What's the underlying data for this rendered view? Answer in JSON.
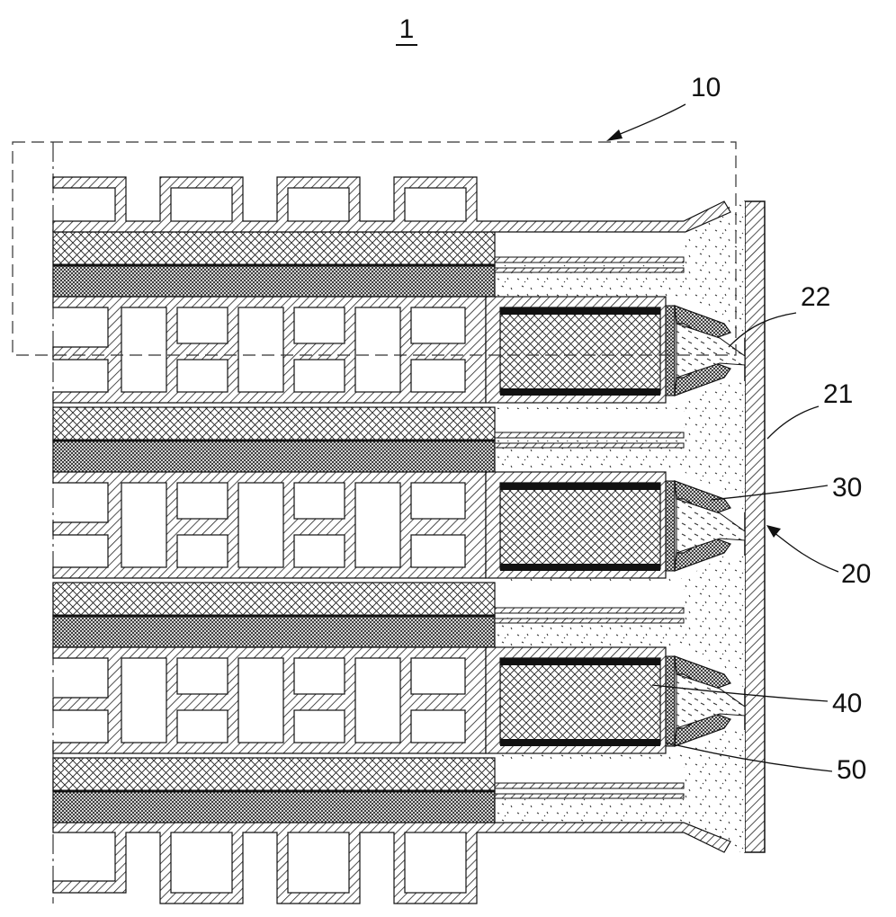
{
  "figure": {
    "title_ref": "1",
    "labels": {
      "l10": "10",
      "l22": "22",
      "l21": "21",
      "l30": "30",
      "l20": "20",
      "l40": "40",
      "l50": "50"
    }
  }
}
